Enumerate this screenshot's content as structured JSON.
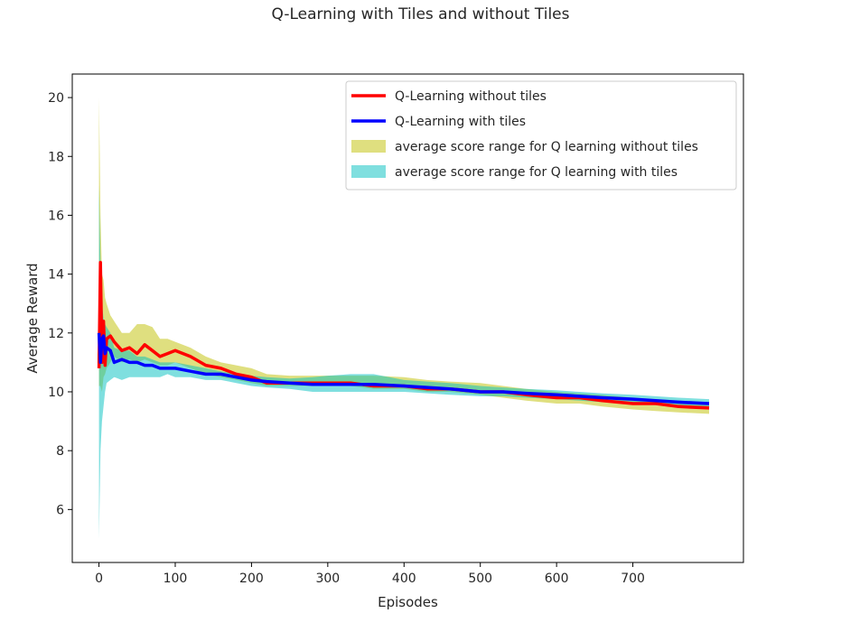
{
  "chart_data": {
    "type": "line",
    "title": "Q-Learning with Tiles and without Tiles",
    "xlabel": "Episodes",
    "ylabel": "Average Reward",
    "xlim": [
      -35,
      845
    ],
    "ylim": [
      4.2,
      20.8
    ],
    "xticks": [
      0,
      100,
      200,
      300,
      400,
      500,
      600,
      700
    ],
    "yticks": [
      6,
      8,
      10,
      12,
      14,
      16,
      18,
      20
    ],
    "grid": false,
    "legend_position": "top-right",
    "x": [
      0,
      2,
      4,
      6,
      8,
      10,
      15,
      20,
      30,
      40,
      50,
      60,
      70,
      80,
      90,
      100,
      120,
      140,
      160,
      180,
      200,
      220,
      250,
      280,
      300,
      330,
      360,
      400,
      430,
      460,
      500,
      530,
      560,
      600,
      630,
      660,
      700,
      730,
      760,
      800
    ],
    "series": [
      {
        "name": "Q-Learning without tiles",
        "kind": "line",
        "color": "#ff0000",
        "values": [
          10.8,
          14.4,
          11.0,
          12.4,
          10.9,
          11.8,
          11.9,
          11.7,
          11.4,
          11.5,
          11.3,
          11.6,
          11.4,
          11.2,
          11.3,
          11.4,
          11.2,
          10.9,
          10.8,
          10.6,
          10.5,
          10.3,
          10.3,
          10.3,
          10.3,
          10.3,
          10.2,
          10.2,
          10.1,
          10.1,
          10.0,
          10.0,
          9.9,
          9.8,
          9.8,
          9.7,
          9.6,
          9.6,
          9.5,
          9.45
        ]
      },
      {
        "name": "Q-Learning with tiles",
        "kind": "line",
        "color": "#0000ff",
        "values": [
          12.0,
          11.0,
          11.8,
          11.9,
          11.3,
          11.5,
          11.4,
          11.0,
          11.1,
          11.0,
          11.0,
          10.9,
          10.9,
          10.8,
          10.8,
          10.8,
          10.7,
          10.6,
          10.6,
          10.5,
          10.4,
          10.35,
          10.3,
          10.25,
          10.25,
          10.25,
          10.25,
          10.2,
          10.15,
          10.1,
          10.0,
          10.0,
          9.95,
          9.9,
          9.85,
          9.8,
          9.75,
          9.7,
          9.65,
          9.6
        ]
      },
      {
        "name": "average score range for Q learning without tiles",
        "kind": "band",
        "color": "#bfbf00",
        "opacity": 0.5,
        "lower": [
          10.2,
          10.2,
          10.0,
          10.5,
          10.6,
          10.8,
          11.0,
          11.2,
          11.0,
          11.1,
          11.0,
          11.1,
          11.0,
          10.9,
          10.9,
          11.0,
          10.8,
          10.6,
          10.5,
          10.4,
          10.3,
          10.2,
          10.2,
          10.2,
          10.2,
          10.2,
          10.1,
          10.1,
          10.0,
          10.0,
          9.9,
          9.8,
          9.7,
          9.6,
          9.6,
          9.5,
          9.4,
          9.35,
          9.3,
          9.25
        ],
        "upper": [
          20.0,
          16.0,
          14.0,
          13.8,
          13.2,
          13.0,
          12.6,
          12.4,
          12.0,
          12.0,
          12.3,
          12.3,
          12.2,
          11.8,
          11.8,
          11.7,
          11.5,
          11.2,
          11.0,
          10.9,
          10.8,
          10.6,
          10.55,
          10.55,
          10.55,
          10.55,
          10.55,
          10.5,
          10.4,
          10.35,
          10.3,
          10.2,
          10.1,
          10.0,
          9.95,
          9.9,
          9.8,
          9.75,
          9.7,
          9.65
        ]
      },
      {
        "name": "average score range for Q learning with tiles",
        "kind": "band",
        "color": "#00bfbf",
        "opacity": 0.5,
        "lower": [
          5.0,
          8.0,
          9.0,
          9.5,
          10.0,
          10.3,
          10.4,
          10.5,
          10.4,
          10.5,
          10.5,
          10.5,
          10.5,
          10.5,
          10.6,
          10.5,
          10.5,
          10.4,
          10.4,
          10.3,
          10.2,
          10.15,
          10.1,
          10.0,
          10.0,
          10.0,
          10.0,
          10.0,
          9.95,
          9.9,
          9.85,
          9.85,
          9.8,
          9.75,
          9.7,
          9.65,
          9.6,
          9.55,
          9.5,
          9.45
        ],
        "upper": [
          17.0,
          14.5,
          13.0,
          12.5,
          12.3,
          12.2,
          12.0,
          11.5,
          11.4,
          11.4,
          11.2,
          11.2,
          11.1,
          11.0,
          11.0,
          11.0,
          10.9,
          10.8,
          10.7,
          10.6,
          10.55,
          10.5,
          10.45,
          10.5,
          10.55,
          10.6,
          10.6,
          10.4,
          10.35,
          10.3,
          10.2,
          10.15,
          10.1,
          10.05,
          10.0,
          9.95,
          9.9,
          9.85,
          9.8,
          9.75
        ]
      }
    ]
  }
}
